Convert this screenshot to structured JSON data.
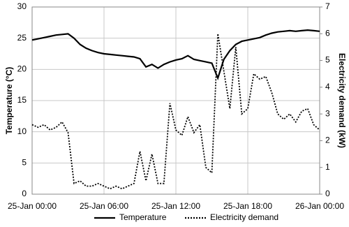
{
  "chart_data": {
    "type": "line",
    "ylabel": "Temperature (°C)",
    "y2label": "Electricity demand (kW)",
    "x": [
      0,
      0.5,
      1,
      1.5,
      2,
      2.5,
      3,
      3.5,
      4,
      4.5,
      5,
      5.5,
      6,
      6.5,
      7,
      7.5,
      8,
      8.5,
      9,
      9.5,
      10,
      10.5,
      11,
      11.5,
      12,
      12.5,
      13,
      13.5,
      14,
      14.5,
      15,
      15.5,
      16,
      16.5,
      17,
      17.5,
      18,
      18.5,
      19,
      19.5,
      20,
      20.5,
      21,
      21.5,
      22,
      22.5,
      23,
      23.5,
      24
    ],
    "xlim": [
      0,
      24
    ],
    "xticks": [
      {
        "value": 0,
        "label": "25-Jan 00:00"
      },
      {
        "value": 6,
        "label": "25-Jan 06:00"
      },
      {
        "value": 12,
        "label": "25-Jan 12:00"
      },
      {
        "value": 18,
        "label": "25-Jan 18:00"
      },
      {
        "value": 24,
        "label": "26-Jan 00:00"
      }
    ],
    "ylim": [
      0,
      30
    ],
    "yticks": [
      0,
      5,
      10,
      15,
      20,
      25,
      30
    ],
    "y2lim": [
      0,
      7
    ],
    "y2ticks": [
      0,
      1,
      2,
      3,
      4,
      5,
      6,
      7
    ],
    "grid": true,
    "legend": "bottom",
    "series": [
      {
        "name": "Temperature",
        "color": "#000000",
        "style": "solid",
        "values": [
          24.7,
          24.9,
          25.1,
          25.3,
          25.5,
          25.6,
          25.7,
          25.0,
          24.0,
          23.4,
          23.0,
          22.7,
          22.5,
          22.4,
          22.3,
          22.2,
          22.1,
          22.0,
          21.7,
          20.4,
          20.8,
          20.2,
          20.8,
          21.2,
          21.5,
          21.7,
          22.2,
          21.6,
          21.4,
          21.2,
          21.0,
          18.6,
          21.6,
          23.0,
          24.0,
          24.5,
          24.7,
          24.9,
          25.1,
          25.5,
          25.8,
          26.0,
          26.1,
          26.2,
          26.1,
          26.2,
          26.3,
          26.2,
          26.1
        ]
      },
      {
        "name": "Electricity demand",
        "color": "#000000",
        "style": "dotted",
        "axis": "y2",
        "values": [
          2.6,
          2.5,
          2.6,
          2.4,
          2.5,
          2.7,
          2.3,
          0.4,
          0.5,
          0.3,
          0.3,
          0.4,
          0.3,
          0.2,
          0.3,
          0.2,
          0.3,
          0.4,
          1.6,
          0.5,
          1.5,
          0.4,
          0.4,
          3.4,
          2.4,
          2.2,
          2.9,
          2.3,
          2.6,
          1.0,
          0.8,
          6.0,
          4.6,
          3.2,
          5.5,
          3.0,
          3.2,
          4.5,
          4.3,
          4.4,
          3.8,
          3.0,
          2.8,
          3.0,
          2.7,
          3.1,
          3.2,
          2.6,
          2.4
        ]
      }
    ]
  }
}
